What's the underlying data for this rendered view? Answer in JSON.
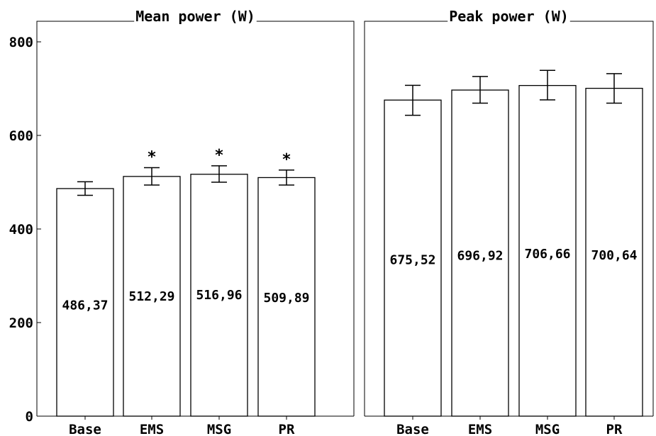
{
  "chart_data": {
    "type": "bar",
    "ylim": [
      0,
      840
    ],
    "yticks": [
      0,
      200,
      400,
      600,
      800
    ],
    "ytick_labels": [
      "0",
      "200",
      "400",
      "600",
      "800"
    ],
    "panels": [
      {
        "title": "Mean power (W)",
        "categories": [
          "Base",
          "EMS",
          "MSG",
          "PR"
        ],
        "values": [
          486.37,
          512.29,
          516.96,
          509.89
        ],
        "value_labels": [
          "486,37",
          "512,29",
          "516,96",
          "509,89"
        ],
        "error_low": [
          472,
          494,
          500,
          494
        ],
        "error_high": [
          501,
          531,
          535,
          526
        ],
        "significance": [
          "",
          "*",
          "*",
          "*"
        ],
        "label_y": [
          237,
          256,
          259,
          253
        ]
      },
      {
        "title": "Peak power (W)",
        "categories": [
          "Base",
          "EMS",
          "MSG",
          "PR"
        ],
        "values": [
          675.52,
          696.92,
          706.66,
          700.64
        ],
        "value_labels": [
          "675,52",
          "696,92",
          "706,66",
          "700,64"
        ],
        "error_low": [
          643,
          669,
          676,
          669
        ],
        "error_high": [
          707,
          726,
          739,
          732
        ],
        "significance": [
          "",
          "",
          "",
          ""
        ],
        "label_y": [
          334,
          343,
          347,
          344
        ]
      }
    ]
  }
}
